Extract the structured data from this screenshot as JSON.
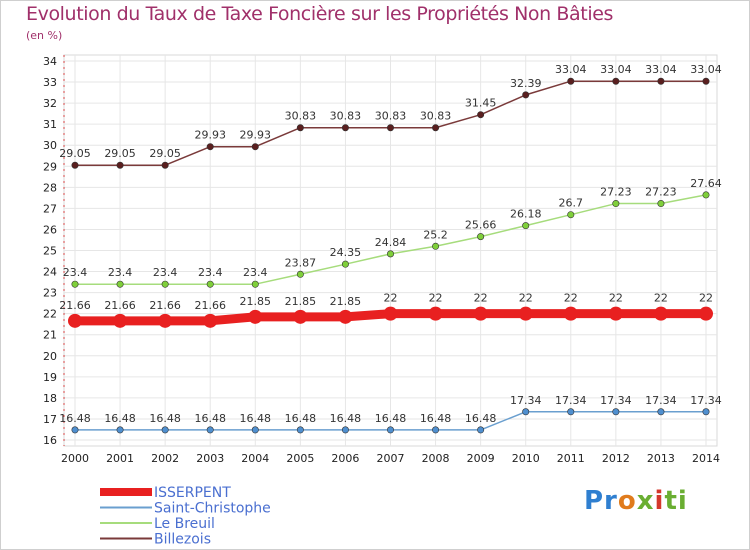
{
  "chart_data": {
    "type": "line",
    "title": "Evolution du Taux de Taxe Foncière sur les Propriétés Non Bâties",
    "subtitle": "(en %)",
    "xlabel": "",
    "ylabel": "(en %)",
    "ylim": [
      16,
      34
    ],
    "yticks": [
      16,
      17,
      18,
      19,
      20,
      21,
      22,
      23,
      24,
      25,
      26,
      27,
      28,
      29,
      30,
      31,
      32,
      33,
      34
    ],
    "x": [
      "2000",
      "2001",
      "2002",
      "2003",
      "2004",
      "2005",
      "2006",
      "2007",
      "2008",
      "2009",
      "2010",
      "2011",
      "2012",
      "2013",
      "2014"
    ],
    "grid": true,
    "series": [
      {
        "name": "ISSERPENT",
        "color": "#e82020",
        "marker_color": "#e82020",
        "values": [
          21.66,
          21.66,
          21.66,
          21.66,
          21.85,
          21.85,
          21.85,
          22,
          22,
          22,
          22,
          22,
          22,
          22,
          22
        ],
        "labels": [
          "21.66",
          "21.66",
          "21.66",
          "21.66",
          "21.85",
          "21.85",
          "21.85",
          "22",
          "22",
          "22",
          "22",
          "22",
          "22",
          "22",
          "22"
        ]
      },
      {
        "name": "Saint-Christophe",
        "color": "#6a9fcf",
        "marker_color": "#4f8fcf",
        "values": [
          16.48,
          16.48,
          16.48,
          16.48,
          16.48,
          16.48,
          16.48,
          16.48,
          16.48,
          16.48,
          17.34,
          17.34,
          17.34,
          17.34,
          17.34
        ],
        "labels": [
          "16.48",
          "16.48",
          "16.48",
          "16.48",
          "16.48",
          "16.48",
          "16.48",
          "16.48",
          "16.48",
          "16.48",
          "17.34",
          "17.34",
          "17.34",
          "17.34",
          "17.34"
        ]
      },
      {
        "name": "Le Breuil",
        "color": "#a6dc7c",
        "marker_color": "#7fcf3a",
        "values": [
          23.4,
          23.4,
          23.4,
          23.4,
          23.4,
          23.87,
          24.35,
          24.84,
          25.2,
          25.66,
          26.18,
          26.7,
          27.23,
          27.23,
          27.64
        ],
        "labels": [
          "23.4",
          "23.4",
          "23.4",
          "23.4",
          "23.4",
          "23.87",
          "24.35",
          "24.84",
          "25.2",
          "25.66",
          "26.18",
          "26.7",
          "27.23",
          "27.23",
          "27.64"
        ]
      },
      {
        "name": "Billezois",
        "color": "#7a3a3a",
        "marker_color": "#5a1f1f",
        "values": [
          29.05,
          29.05,
          29.05,
          29.93,
          29.93,
          30.83,
          30.83,
          30.83,
          30.83,
          31.45,
          32.39,
          33.04,
          33.04,
          33.04,
          33.04
        ],
        "labels": [
          "29.05",
          "29.05",
          "29.05",
          "29.93",
          "29.93",
          "30.83",
          "30.83",
          "30.83",
          "30.83",
          "31.45",
          "32.39",
          "33.04",
          "33.04",
          "33.04",
          "33.04"
        ]
      }
    ],
    "legend": [
      {
        "name": "ISSERPENT",
        "color": "#e82020",
        "text_color": "#4a6fd0"
      },
      {
        "name": "Saint-Christophe",
        "color": "#6a9fcf",
        "text_color": "#4a6fd0"
      },
      {
        "name": "Le Breuil",
        "color": "#a6dc7c",
        "text_color": "#4a6fd0"
      },
      {
        "name": "Billezois",
        "color": "#7a3a3a",
        "text_color": "#4a6fd0"
      }
    ],
    "legend_position": "bottom-left"
  },
  "branding": {
    "logo_parts": [
      "Pr",
      "o",
      "x",
      "i",
      "ti"
    ]
  }
}
